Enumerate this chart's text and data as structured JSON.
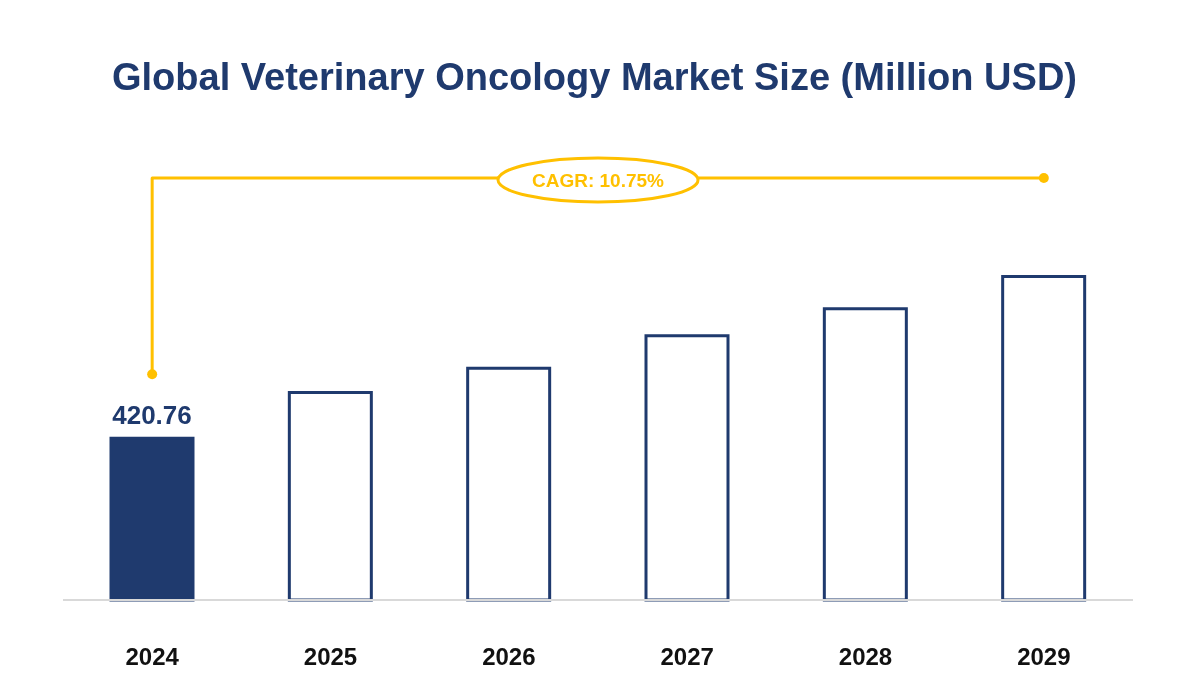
{
  "chart_data": {
    "type": "bar",
    "title": "Global Veterinary Oncology Market Size (Million USD)",
    "categories": [
      "2024",
      "2025",
      "2026",
      "2027",
      "2028",
      "2029"
    ],
    "values": [
      420.76,
      540,
      603,
      688,
      758,
      842
    ],
    "color": "#1f3a6e",
    "colors": [
      "#1f3a6e",
      "#ffffff",
      "#ffffff",
      "#ffffff",
      "#ffffff",
      "#ffffff"
    ],
    "value_labels": [
      "420.76",
      null,
      null,
      null,
      null,
      null
    ],
    "annotations": [
      "CAGR: 10.75%"
    ],
    "grid": false,
    "legend": false
  }
}
